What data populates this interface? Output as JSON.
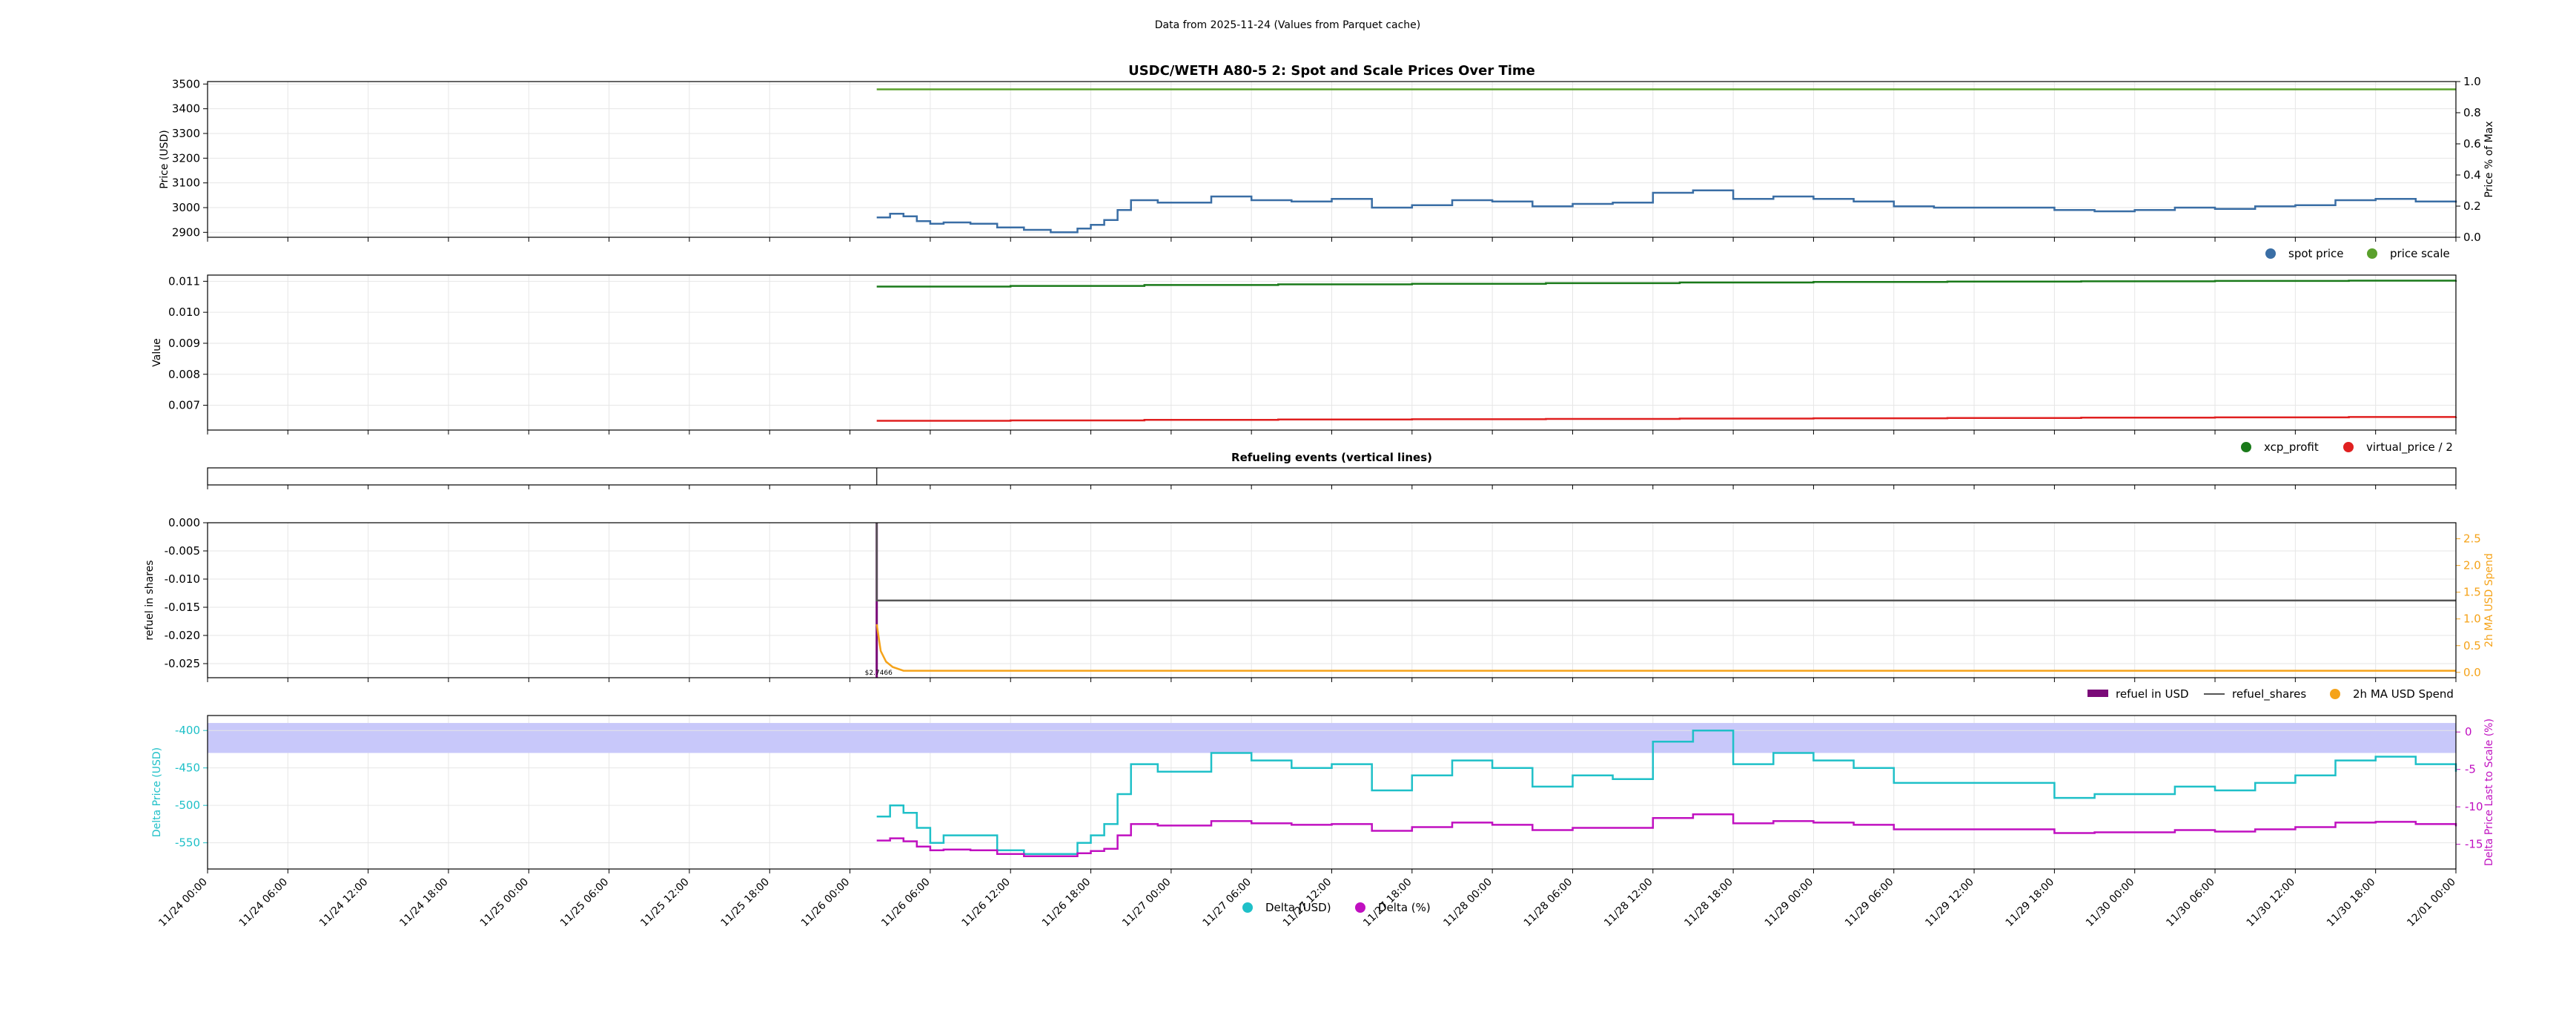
{
  "figure": {
    "suptitle": "Data from 2025-11-24 (Values from Parquet cache)"
  },
  "x_axis": {
    "tick_labels": [
      "11/24 00:00",
      "11/24 06:00",
      "11/24 12:00",
      "11/24 18:00",
      "11/25 00:00",
      "11/25 06:00",
      "11/25 12:00",
      "11/25 18:00",
      "11/26 00:00",
      "11/26 06:00",
      "11/26 12:00",
      "11/26 18:00",
      "11/27 00:00",
      "11/27 06:00",
      "11/27 12:00",
      "11/27 18:00",
      "11/28 00:00",
      "11/28 06:00",
      "11/28 12:00",
      "11/28 18:00",
      "11/29 00:00",
      "11/29 06:00",
      "11/29 12:00",
      "11/29 18:00",
      "11/30 00:00",
      "11/30 06:00",
      "11/30 12:00",
      "11/30 18:00",
      "12/01 00:00"
    ],
    "range_hours": [
      0,
      168
    ]
  },
  "colors": {
    "blue": "#3a6ea5",
    "green": "#5aa02c",
    "darkgreen": "#1a7a1a",
    "red": "#e02020",
    "purple": "#7a0a78",
    "orange": "#f5a31a",
    "cyan": "#1fc0c8",
    "magenta": "#c010c0",
    "band": "#c8c8fa"
  },
  "chart_data": [
    {
      "type": "line",
      "title": "USDC/WETH A80-5 2: Spot and Scale Prices Over Time",
      "ylabel": "Price (USD)",
      "ylabel_right": "Price % of Max",
      "ylim": [
        2880,
        3510
      ],
      "ylim_right": [
        0,
        1
      ],
      "yticks": [
        "3500",
        "3400",
        "3300",
        "3200",
        "3100",
        "3000",
        "2900"
      ],
      "yticks_right": [
        "1.0",
        "0.8",
        "0.6",
        "0.4",
        "0.2",
        "0.0"
      ],
      "legend": [
        {
          "name": "spot price",
          "color": "#3a6ea5"
        },
        {
          "name": "price scale",
          "color": "#5aa02c"
        }
      ],
      "legend_location": "below-right",
      "grid": true,
      "series": [
        {
          "name": "spot price",
          "axis": "left",
          "x": [
            50,
            51,
            52,
            53,
            54,
            55,
            57,
            59,
            61,
            63,
            65,
            66,
            67,
            68,
            69,
            71,
            73,
            75,
            78,
            81,
            84,
            87,
            90,
            93,
            96,
            99,
            102,
            105,
            108,
            111,
            114,
            117,
            120,
            123,
            126,
            129,
            132,
            135,
            138,
            141,
            144,
            147,
            150,
            153,
            156,
            159,
            162,
            165,
            168
          ],
          "values": [
            2960,
            2975,
            2965,
            2945,
            2935,
            2940,
            2935,
            2920,
            2910,
            2900,
            2915,
            2930,
            2950,
            2990,
            3030,
            3020,
            3020,
            3045,
            3030,
            3025,
            3035,
            3000,
            3010,
            3030,
            3025,
            3005,
            3015,
            3020,
            3060,
            3070,
            3035,
            3045,
            3035,
            3025,
            3005,
            3000,
            3000,
            3000,
            2990,
            2985,
            2990,
            3000,
            2995,
            3005,
            3010,
            3030,
            3035,
            3025,
            3020
          ]
        },
        {
          "name": "price scale",
          "axis": "right",
          "x": [
            50,
            168
          ],
          "values": [
            0.95,
            0.95
          ]
        }
      ]
    },
    {
      "type": "line",
      "title": "",
      "ylabel": "Value",
      "ylim": [
        0.0062,
        0.0112
      ],
      "yticks": [
        "0.011",
        "0.010",
        "0.009",
        "0.008",
        "0.007"
      ],
      "legend": [
        {
          "name": "xcp_profit",
          "color": "#1a7a1a"
        },
        {
          "name": "virtual_price / 2",
          "color": "#e02020"
        }
      ],
      "legend_location": "below-right",
      "grid": true,
      "series": [
        {
          "name": "xcp_profit",
          "x": [
            50,
            60,
            70,
            80,
            90,
            100,
            110,
            120,
            130,
            140,
            150,
            160,
            168
          ],
          "values": [
            0.01083,
            0.01085,
            0.01088,
            0.0109,
            0.01092,
            0.01094,
            0.01096,
            0.01098,
            0.01099,
            0.011,
            0.01101,
            0.01102,
            0.01103
          ]
        },
        {
          "name": "virtual_price / 2",
          "x": [
            50,
            60,
            70,
            80,
            90,
            100,
            110,
            120,
            130,
            140,
            150,
            160,
            168
          ],
          "values": [
            0.0065,
            0.00651,
            0.00653,
            0.00654,
            0.00655,
            0.00656,
            0.00657,
            0.00658,
            0.00659,
            0.0066,
            0.00661,
            0.00662,
            0.00663
          ]
        }
      ]
    },
    {
      "type": "line",
      "title": "Refueling events (vertical lines)",
      "events_x": [
        50
      ],
      "series": []
    },
    {
      "type": "line",
      "title": "",
      "ylabel": "refuel in shares",
      "ylabel_right": "2h MA USD Spend",
      "ylim": [
        -0.0275,
        0.0
      ],
      "ylim_right": [
        -0.1,
        2.8
      ],
      "yticks": [
        "0.000",
        "-0.005",
        "-0.010",
        "-0.015",
        "-0.020",
        "-0.025"
      ],
      "yticks_right": [
        "2.5",
        "2.0",
        "1.5",
        "1.0",
        "0.5",
        "0.0"
      ],
      "annotation": "$2.7466",
      "legend": [
        {
          "name": "refuel in USD",
          "color": "#7a0a78"
        },
        {
          "name": "refuel_shares",
          "color": "#555555"
        },
        {
          "name": "2h MA USD Spend",
          "color": "#f5a31a"
        }
      ],
      "legend_location": "below-right",
      "grid": true,
      "series": [
        {
          "name": "refuel in USD",
          "x": [
            50,
            50
          ],
          "values": [
            0.0,
            -0.0275
          ]
        },
        {
          "name": "refuel_shares",
          "x": [
            50,
            50,
            168
          ],
          "values": [
            0.0,
            -0.0138,
            -0.0138
          ]
        },
        {
          "name": "2h MA USD Spend",
          "axis": "right",
          "x": [
            50,
            50.3,
            50.7,
            51.2,
            52,
            168
          ],
          "values": [
            0.9,
            0.4,
            0.2,
            0.1,
            0.03,
            0.03
          ]
        }
      ]
    },
    {
      "type": "line",
      "title": "",
      "ylabel": "Delta Price (USD)",
      "ylabel_right": "Delta Price Last to Scale (%)",
      "ylim": [
        -585,
        -380
      ],
      "ylim_right": [
        -18.3,
        2.2
      ],
      "yticks": [
        "-400",
        "-450",
        "-500",
        "-550"
      ],
      "yticks_right": [
        "0",
        "-5",
        "-10",
        "-15"
      ],
      "band": [
        -430,
        -390
      ],
      "legend": [
        {
          "name": "Delta (USD)",
          "color": "#1fc0c8"
        },
        {
          "name": "Delta (%)",
          "color": "#c010c0"
        }
      ],
      "legend_location": "bottom-center",
      "grid": true,
      "series": [
        {
          "name": "Delta (USD)",
          "x": [
            50,
            51,
            52,
            53,
            54,
            55,
            57,
            59,
            61,
            63,
            65,
            66,
            67,
            68,
            69,
            71,
            73,
            75,
            78,
            81,
            84,
            87,
            90,
            93,
            96,
            99,
            102,
            105,
            108,
            111,
            114,
            117,
            120,
            123,
            126,
            129,
            132,
            135,
            138,
            141,
            144,
            147,
            150,
            153,
            156,
            159,
            162,
            165,
            168
          ],
          "values": [
            -515,
            -500,
            -510,
            -530,
            -550,
            -540,
            -540,
            -560,
            -565,
            -565,
            -550,
            -540,
            -525,
            -485,
            -445,
            -455,
            -455,
            -430,
            -440,
            -450,
            -445,
            -480,
            -460,
            -440,
            -450,
            -475,
            -460,
            -465,
            -415,
            -400,
            -445,
            -430,
            -440,
            -450,
            -470,
            -470,
            -470,
            -470,
            -490,
            -485,
            -485,
            -475,
            -480,
            -470,
            -460,
            -440,
            -435,
            -445,
            -455
          ]
        },
        {
          "name": "Delta (%)",
          "axis": "right",
          "x": [
            50,
            51,
            52,
            53,
            54,
            55,
            57,
            59,
            61,
            63,
            65,
            66,
            67,
            68,
            69,
            71,
            73,
            75,
            78,
            81,
            84,
            87,
            90,
            93,
            96,
            99,
            102,
            105,
            108,
            111,
            114,
            117,
            120,
            123,
            126,
            129,
            132,
            135,
            138,
            141,
            144,
            147,
            150,
            153,
            156,
            159,
            162,
            165,
            168
          ],
          "values": [
            -14.5,
            -14.2,
            -14.6,
            -15.3,
            -15.8,
            -15.7,
            -15.8,
            -16.3,
            -16.6,
            -16.6,
            -16.2,
            -15.9,
            -15.6,
            -13.8,
            -12.3,
            -12.5,
            -12.5,
            -11.9,
            -12.2,
            -12.4,
            -12.3,
            -13.2,
            -12.7,
            -12.1,
            -12.4,
            -13.1,
            -12.8,
            -12.8,
            -11.5,
            -11.0,
            -12.2,
            -11.9,
            -12.1,
            -12.4,
            -13.0,
            -13.0,
            -13.0,
            -13.0,
            -13.5,
            -13.4,
            -13.4,
            -13.1,
            -13.3,
            -13.0,
            -12.7,
            -12.1,
            -12.0,
            -12.3,
            -12.6
          ]
        }
      ]
    }
  ]
}
